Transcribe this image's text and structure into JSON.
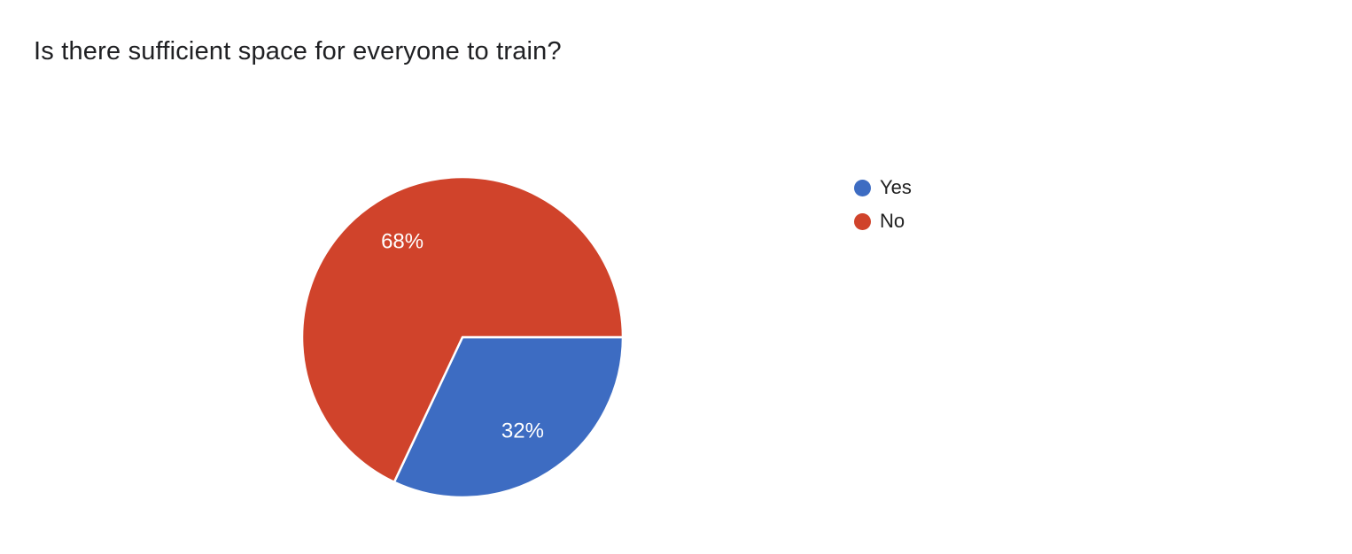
{
  "title": "Is there sufficient space for everyone to train?",
  "chart_data": {
    "type": "pie",
    "title": "Is there sufficient space for everyone to train?",
    "categories": [
      "Yes",
      "No"
    ],
    "values": [
      32,
      68
    ],
    "slice_labels": [
      "32%",
      "68%"
    ],
    "colors": [
      "#3d6cc2",
      "#d0432b"
    ],
    "legend_position": "right",
    "start_angle_deg": 0,
    "direction": "clockwise",
    "label_color": "#ffffff"
  },
  "legend": {
    "items": [
      {
        "label": "Yes",
        "color": "#3d6cc2"
      },
      {
        "label": "No",
        "color": "#d0432b"
      }
    ]
  }
}
